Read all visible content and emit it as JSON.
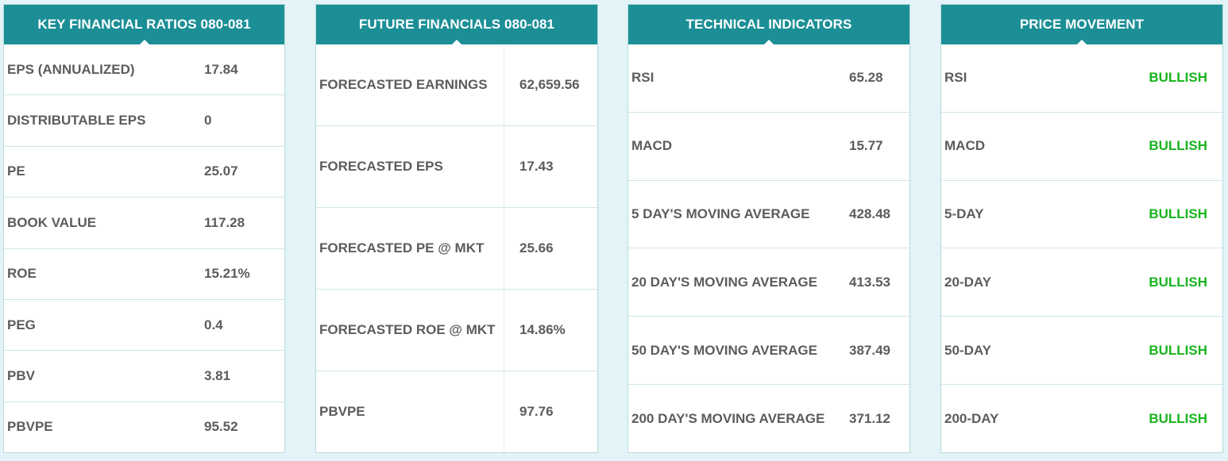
{
  "key_ratios": {
    "title": "KEY FINANCIAL RATIOS 080-081",
    "rows": [
      {
        "label": "EPS (ANNUALIZED)",
        "value": "17.84"
      },
      {
        "label": "DISTRIBUTABLE EPS",
        "value": "0"
      },
      {
        "label": "PE",
        "value": "25.07"
      },
      {
        "label": "BOOK VALUE",
        "value": "117.28"
      },
      {
        "label": "ROE",
        "value": "15.21%"
      },
      {
        "label": "PEG",
        "value": "0.4"
      },
      {
        "label": "PBV",
        "value": "3.81"
      },
      {
        "label": "PBVPE",
        "value": "95.52"
      }
    ]
  },
  "future_financials": {
    "title": "FUTURE FINANCIALS 080-081",
    "rows": [
      {
        "label": "FORECASTED EARNINGS",
        "value": "62,659.56"
      },
      {
        "label": "FORECASTED EPS",
        "value": "17.43"
      },
      {
        "label": "FORECASTED PE @ MKT",
        "value": "25.66"
      },
      {
        "label": "FORECASTED ROE @ MKT",
        "value": "14.86%"
      },
      {
        "label": "PBVPE",
        "value": "97.76"
      }
    ]
  },
  "technical_indicators": {
    "title": "TECHNICAL INDICATORS",
    "rows": [
      {
        "label": "RSI",
        "value": "65.28"
      },
      {
        "label": "MACD",
        "value": "15.77"
      },
      {
        "label": "5 DAY'S MOVING AVERAGE",
        "value": "428.48"
      },
      {
        "label": "20 DAY'S MOVING AVERAGE",
        "value": "413.53"
      },
      {
        "label": "50 DAY'S MOVING AVERAGE",
        "value": "387.49"
      },
      {
        "label": "200 DAY'S MOVING AVERAGE",
        "value": "371.12"
      }
    ]
  },
  "price_movement": {
    "title": "PRICE MOVEMENT",
    "rows": [
      {
        "label": "RSI",
        "value": "BULLISH"
      },
      {
        "label": "MACD",
        "value": "BULLISH"
      },
      {
        "label": "5-DAY",
        "value": "BULLISH"
      },
      {
        "label": "20-DAY",
        "value": "BULLISH"
      },
      {
        "label": "50-DAY",
        "value": "BULLISH"
      },
      {
        "label": "200-DAY",
        "value": "BULLISH"
      }
    ]
  },
  "colors": {
    "header_bg": "#1c8f96",
    "bullish": "#18b41e",
    "text": "#5c5c5c"
  }
}
